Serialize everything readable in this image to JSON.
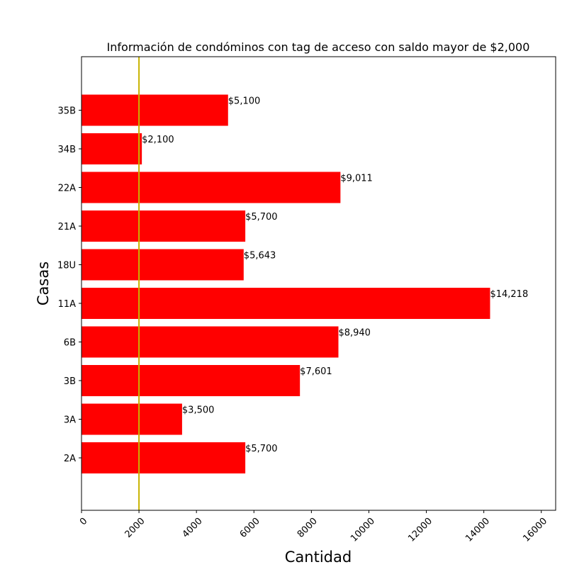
{
  "chart_data": {
    "type": "bar",
    "orientation": "horizontal",
    "title": "Información de condóminos con tag de acceso con saldo mayor de $2,000",
    "xlabel": "Cantidad",
    "ylabel": "Casas",
    "categories": [
      "2A",
      "3A",
      "3B",
      "6B",
      "11A",
      "18U",
      "21A",
      "22A",
      "34B",
      "35B"
    ],
    "values": [
      5700,
      3500,
      7601,
      8940,
      14218,
      5643,
      5700,
      9011,
      2100,
      5100
    ],
    "data_labels": [
      "$5,700",
      "$3,500",
      "$7,601",
      "$8,940",
      "$14,218",
      "$5,643",
      "$5,700",
      "$9,011",
      "$2,100",
      "$5,100"
    ],
    "xlim": [
      0,
      16500
    ],
    "xticks": [
      "0",
      "2000",
      "4000",
      "6000",
      "8000",
      "10000",
      "12000",
      "14000",
      "16000"
    ],
    "xtick_values": [
      0,
      2000,
      4000,
      6000,
      8000,
      10000,
      12000,
      14000,
      16000
    ],
    "reference_line": {
      "x": 2000,
      "color": "#c8b400"
    },
    "bar_color": "#ff0000",
    "grid": false
  }
}
